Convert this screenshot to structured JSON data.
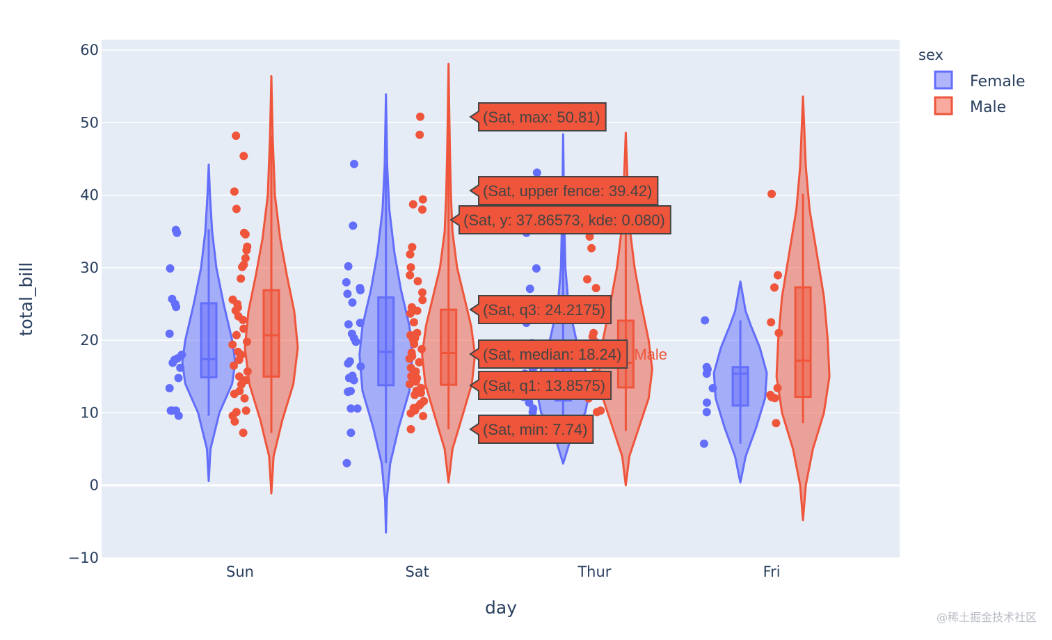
{
  "chart_data": {
    "type": "violin",
    "title": "",
    "xlabel": "day",
    "ylabel": "total_bill",
    "ylim": [
      -10,
      60
    ],
    "yticks": [
      -10,
      0,
      10,
      20,
      30,
      40,
      50,
      60
    ],
    "ytick_labels": [
      "−10",
      "0",
      "10",
      "20",
      "30",
      "40",
      "50",
      "60"
    ],
    "categories": [
      "Sun",
      "Sat",
      "Thur",
      "Fri"
    ],
    "grid": true,
    "legend": {
      "title": "sex",
      "placement": "top-right",
      "entries": [
        "Female",
        "Male"
      ]
    },
    "colors": {
      "Female": "#636efa",
      "Male": "#ef553b",
      "plot_bg": "#e5ecf6",
      "grid": "#ffffff",
      "text": "#2a3f5f"
    },
    "series": [
      {
        "name": "Female",
        "violins": [
          {
            "category": "Sun",
            "span": [
              0.6,
              44.2
            ],
            "min": 9.6,
            "q1": 14.9,
            "median": 17.4,
            "q3": 25.1,
            "max": 35.3,
            "box_upper_whisker": 35.3,
            "kde": [
              [
                0.6,
                0
              ],
              [
                5,
                0.04
              ],
              [
                10,
                0.25
              ],
              [
                14,
                0.55
              ],
              [
                17,
                0.62
              ],
              [
                20,
                0.55
              ],
              [
                25,
                0.35
              ],
              [
                30,
                0.18
              ],
              [
                35,
                0.08
              ],
              [
                40,
                0.03
              ],
              [
                44.2,
                0
              ]
            ],
            "points": [
              35.2,
              34.8,
              29.9,
              25.7,
              25.0,
              24.6,
              20.9,
              18.0,
              17.5,
              17.3,
              16.9,
              16.2,
              14.8,
              13.4,
              10.3,
              10.3,
              9.6,
              10.3
            ]
          },
          {
            "category": "Sat",
            "span": [
              -6.5,
              53.9
            ],
            "min": 3.07,
            "q1": 13.8,
            "median": 18.4,
            "q3": 25.9,
            "max": 44.3,
            "kde": [
              [
                -6.5,
                0
              ],
              [
                -2,
                0.02
              ],
              [
                3,
                0.1
              ],
              [
                8,
                0.3
              ],
              [
                13,
                0.55
              ],
              [
                18,
                0.62
              ],
              [
                22,
                0.55
              ],
              [
                27,
                0.35
              ],
              [
                32,
                0.2
              ],
              [
                38,
                0.08
              ],
              [
                44,
                0.03
              ],
              [
                53.9,
                0
              ]
            ],
            "points": [
              44.3,
              35.8,
              30.2,
              28.0,
              27.2,
              26.9,
              26.4,
              25.2,
              22.4,
              22.2,
              20.9,
              20.3,
              19.8,
              17.1,
              16.8,
              16.4,
              15.1,
              14.8,
              14.5,
              13.0,
              12.9,
              10.6,
              10.6,
              7.25,
              3.07
            ]
          },
          {
            "category": "Thur",
            "span": [
              3.0,
              48.4
            ],
            "min": 8.35,
            "q1": 11.7,
            "median": 13.4,
            "q3": 16.8,
            "max": 43.1,
            "kde": [
              [
                3,
                0
              ],
              [
                7,
                0.2
              ],
              [
                10,
                0.5
              ],
              [
                13,
                0.6
              ],
              [
                16,
                0.5
              ],
              [
                20,
                0.3
              ],
              [
                25,
                0.12
              ],
              [
                30,
                0.05
              ],
              [
                38,
                0.02
              ],
              [
                48.4,
                0
              ]
            ],
            "points": [
              43.1,
              34.8,
              29.9,
              27.1,
              22.4,
              19.6,
              18.4,
              16.4,
              16.0,
              15.4,
              14.8,
              13.4,
              12.7,
              12.2,
              11.4,
              10.6,
              10.1,
              8.35
            ]
          },
          {
            "category": "Fri",
            "span": [
              0.4,
              28.1
            ],
            "min": 5.75,
            "q1": 11.0,
            "median": 15.4,
            "q3": 16.3,
            "max": 22.75,
            "kde": [
              [
                0.4,
                0
              ],
              [
                4,
                0.15
              ],
              [
                8,
                0.45
              ],
              [
                12,
                0.7
              ],
              [
                15.5,
                0.75
              ],
              [
                19,
                0.55
              ],
              [
                22,
                0.3
              ],
              [
                24,
                0.15
              ],
              [
                28.1,
                0
              ]
            ],
            "points": [
              22.75,
              16.3,
              16.0,
              15.4,
              13.4,
              11.4,
              10.1,
              5.75
            ]
          }
        ]
      },
      {
        "name": "Male",
        "violins": [
          {
            "category": "Sun",
            "span": [
              -1.1,
              56.4
            ],
            "min": 7.25,
            "q1": 15.0,
            "median": 20.7,
            "q3": 26.9,
            "max": 48.2,
            "kde": [
              [
                -1.1,
                0
              ],
              [
                4,
                0.05
              ],
              [
                9,
                0.25
              ],
              [
                14,
                0.5
              ],
              [
                19,
                0.6
              ],
              [
                24,
                0.52
              ],
              [
                29,
                0.35
              ],
              [
                34,
                0.2
              ],
              [
                40,
                0.08
              ],
              [
                48,
                0.03
              ],
              [
                56.4,
                0
              ]
            ],
            "points": [
              48.2,
              45.4,
              40.5,
              38.1,
              34.8,
              34.6,
              32.9,
              32.4,
              31.3,
              30.4,
              30.1,
              28.5,
              25.6,
              25.0,
              24.5,
              24.1,
              23.3,
              22.8,
              21.6,
              20.7,
              19.8,
              19.4,
              18.4,
              18.0,
              17.3,
              16.5,
              15.7,
              15.0,
              14.5,
              13.9,
              13.0,
              12.6,
              12.0,
              10.3,
              10.1,
              9.6,
              8.8,
              7.25
            ]
          },
          {
            "category": "Sat",
            "span": [
              0.4,
              58.1
            ],
            "min": 7.74,
            "lower_fence": 7.74,
            "q1": 13.8575,
            "median": 18.24,
            "q3": 24.2175,
            "upper_fence": 39.42,
            "max": 50.81,
            "kde": [
              [
                0.4,
                0
              ],
              [
                5,
                0.1
              ],
              [
                10,
                0.38
              ],
              [
                14,
                0.6
              ],
              [
                18,
                0.68
              ],
              [
                22,
                0.58
              ],
              [
                26,
                0.4
              ],
              [
                30,
                0.22
              ],
              [
                35,
                0.1
              ],
              [
                40,
                0.06
              ],
              [
                45,
                0.04
              ],
              [
                50.8,
                0.02
              ],
              [
                58.1,
                0
              ]
            ],
            "points": [
              50.81,
              48.33,
              39.42,
              38.73,
              38.01,
              32.83,
              31.85,
              30.06,
              28.97,
              28.15,
              26.59,
              25.56,
              24.55,
              24.06,
              23.68,
              22.49,
              21.01,
              20.69,
              20.29,
              20.08,
              19.49,
              18.78,
              18.29,
              17.81,
              17.46,
              16.97,
              16.21,
              15.69,
              15.04,
              14.78,
              14.31,
              13.94,
              13.42,
              13.03,
              12.74,
              12.46,
              11.61,
              11.24,
              11.02,
              10.65,
              10.34,
              9.94,
              9.55,
              7.74
            ],
            "hover_annotations": [
              {
                "label": "(Sat, max: 50.81)",
                "y": 50.81
              },
              {
                "label": "(Sat, upper fence: 39.42)",
                "y": 39.42
              },
              {
                "label": "(Sat, y: 37.86573, kde: 0.080)",
                "y": 37.86573
              },
              {
                "label": "(Sat, q3: 24.2175)",
                "y": 24.2175
              },
              {
                "label": "(Sat, median: 18.24)",
                "y": 18.24,
                "trace_name": "Male"
              },
              {
                "label": "(Sat, q1: 13.8575)",
                "y": 13.8575
              },
              {
                "label": "(Sat, min: 7.74)",
                "y": 7.74
              }
            ]
          },
          {
            "category": "Thur",
            "span": [
              0.0,
              48.6
            ],
            "min": 7.51,
            "q1": 13.5,
            "median": 16.9,
            "q3": 22.7,
            "max": 41.2,
            "kde": [
              [
                0,
                0
              ],
              [
                4,
                0.08
              ],
              [
                8,
                0.3
              ],
              [
                12,
                0.52
              ],
              [
                16,
                0.6
              ],
              [
                20,
                0.52
              ],
              [
                25,
                0.35
              ],
              [
                30,
                0.2
              ],
              [
                35,
                0.1
              ],
              [
                42,
                0.04
              ],
              [
                48.6,
                0
              ]
            ],
            "points": [
              41.2,
              34.3,
              32.7,
              28.4,
              27.2,
              21.0,
              20.5,
              19.8,
              16.9,
              15.5,
              13.5,
              12.0,
              10.3,
              10.1
            ]
          },
          {
            "category": "Fri",
            "span": [
              -4.8,
              53.6
            ],
            "min": 8.58,
            "q1": 12.2,
            "median": 17.2,
            "q3": 27.3,
            "max": 40.17,
            "kde": [
              [
                -4.8,
                0
              ],
              [
                0,
                0.05
              ],
              [
                5,
                0.18
              ],
              [
                10,
                0.38
              ],
              [
                15,
                0.48
              ],
              [
                20,
                0.45
              ],
              [
                26,
                0.38
              ],
              [
                32,
                0.25
              ],
              [
                38,
                0.12
              ],
              [
                44,
                0.05
              ],
              [
                53.6,
                0
              ]
            ],
            "points": [
              40.17,
              28.97,
              27.28,
              22.49,
              21.01,
              13.42,
              12.46,
              12.16,
              12.03,
              8.58
            ]
          }
        ]
      }
    ]
  },
  "watermark": "@稀土掘金技术社区"
}
